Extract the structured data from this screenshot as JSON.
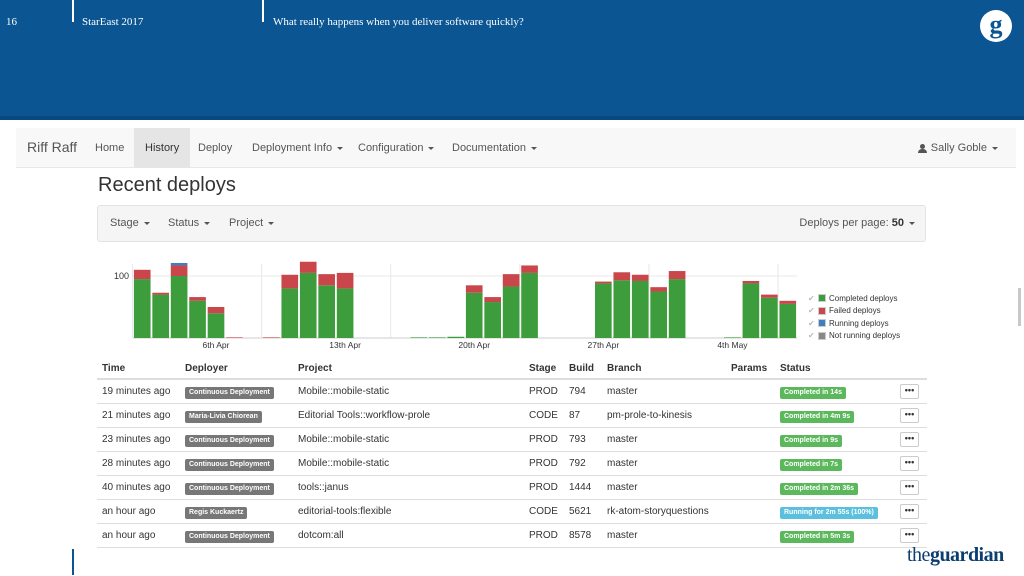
{
  "slide": {
    "number": "16",
    "conference": "StarEast 2017",
    "talk_title": "What really happens when you deliver software quickly?",
    "logo_glyph": "g",
    "footer_brand_prefix": "the",
    "footer_brand_suffix": "guardian"
  },
  "navbar": {
    "brand": "Riff Raff",
    "items": [
      {
        "label": "Home",
        "dropdown": false,
        "active": false
      },
      {
        "label": "History",
        "dropdown": false,
        "active": true
      },
      {
        "label": "Deploy",
        "dropdown": false,
        "active": false
      },
      {
        "label": "Deployment Info",
        "dropdown": true,
        "active": false
      },
      {
        "label": "Configuration",
        "dropdown": true,
        "active": false
      },
      {
        "label": "Documentation",
        "dropdown": true,
        "active": false
      }
    ],
    "user": "Sally Goble"
  },
  "page_title": "Recent deploys",
  "filters": {
    "stage": "Stage",
    "status": "Status",
    "project": "Project",
    "per_page_label": "Deploys per page:",
    "per_page_value": "50"
  },
  "chart_data": {
    "type": "bar",
    "stacked": true,
    "y_tick_label": "100",
    "x_tick_labels": [
      "6th Apr",
      "13th Apr",
      "20th Apr",
      "27th Apr",
      "4th May"
    ],
    "series": [
      {
        "name": "Completed deploys",
        "color": "#3d9d3d",
        "values": [
          95,
          70,
          100,
          60,
          40,
          0,
          0,
          0,
          80,
          105,
          85,
          80,
          0,
          0,
          0,
          1,
          1,
          2,
          73,
          58,
          83,
          105,
          0,
          0,
          0,
          88,
          93,
          92,
          75,
          95,
          0,
          0,
          1,
          88,
          65,
          55
        ]
      },
      {
        "name": "Failed deploys",
        "color": "#c9474b",
        "values": [
          15,
          3,
          17,
          6,
          10,
          1,
          0,
          1,
          22,
          18,
          18,
          25,
          0,
          0,
          0,
          0,
          0,
          0,
          12,
          8,
          20,
          12,
          0,
          0,
          0,
          3,
          13,
          10,
          7,
          13,
          0,
          0,
          0,
          4,
          5,
          5
        ]
      },
      {
        "name": "Running deploys",
        "color": "#3f7fbf",
        "values": [
          0,
          0,
          4,
          0,
          0,
          0,
          0,
          0,
          0,
          0,
          0,
          0,
          0,
          0,
          0,
          0,
          0,
          0,
          0,
          0,
          0,
          0,
          0,
          0,
          0,
          0,
          0,
          0,
          0,
          0,
          0,
          0,
          0,
          0,
          0,
          0
        ]
      },
      {
        "name": "Not running deploys",
        "color": "#888888",
        "values": [
          0,
          0,
          0,
          0,
          0,
          0,
          0,
          0,
          0,
          0,
          0,
          0,
          0,
          0,
          0,
          0,
          0,
          0,
          0,
          0,
          0,
          0,
          0,
          0,
          0,
          0,
          0,
          0,
          0,
          0,
          0,
          0,
          0,
          0,
          0,
          0
        ]
      }
    ]
  },
  "table": {
    "headers": {
      "time": "Time",
      "deployer": "Deployer",
      "project": "Project",
      "stage": "Stage",
      "build": "Build",
      "branch": "Branch",
      "params": "Params",
      "status": "Status"
    },
    "rows": [
      {
        "time": "19 minutes ago",
        "deployer": "Continuous Deployment",
        "project": "Mobile::mobile-static",
        "stage": "PROD",
        "build": "794",
        "branch": "master",
        "status": "Completed in 14s",
        "status_color": "#5cb85c",
        "more": "•••"
      },
      {
        "time": "21 minutes ago",
        "deployer": "Maria-Livia Chiorean",
        "project": "Editorial Tools::workflow-prole",
        "stage": "CODE",
        "build": "87",
        "branch": "pm-prole-to-kinesis",
        "status": "Completed in 4m 9s",
        "status_color": "#5cb85c",
        "more": "•••"
      },
      {
        "time": "23 minutes ago",
        "deployer": "Continuous Deployment",
        "project": "Mobile::mobile-static",
        "stage": "PROD",
        "build": "793",
        "branch": "master",
        "status": "Completed in 9s",
        "status_color": "#5cb85c",
        "more": "•••"
      },
      {
        "time": "28 minutes ago",
        "deployer": "Continuous Deployment",
        "project": "Mobile::mobile-static",
        "stage": "PROD",
        "build": "792",
        "branch": "master",
        "status": "Completed in 7s",
        "status_color": "#5cb85c",
        "more": "•••"
      },
      {
        "time": "40 minutes ago",
        "deployer": "Continuous Deployment",
        "project": "tools::janus",
        "stage": "PROD",
        "build": "1444",
        "branch": "master",
        "status": "Completed in 2m 36s",
        "status_color": "#5cb85c",
        "more": "•••"
      },
      {
        "time": "an hour ago",
        "deployer": "Regis Kuckaertz",
        "project": "editorial-tools:flexible",
        "stage": "CODE",
        "build": "5621",
        "branch": "rk-atom-storyquestions",
        "status": "Running for 2m 55s (100%)",
        "status_color": "#5bc0de",
        "more": "•••"
      },
      {
        "time": "an hour ago",
        "deployer": "Continuous Deployment",
        "project": "dotcom:all",
        "stage": "PROD",
        "build": "8578",
        "branch": "master",
        "status": "Completed in 5m 3s",
        "status_color": "#5cb85c",
        "more": "•••"
      }
    ]
  }
}
